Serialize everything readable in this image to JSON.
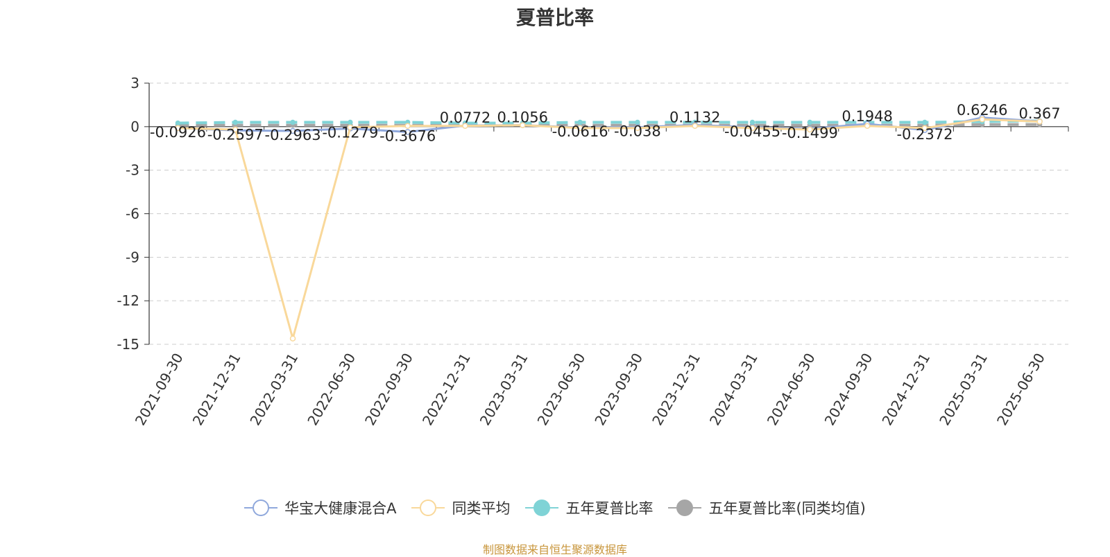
{
  "chart_data": {
    "type": "line",
    "title": "夏普比率",
    "categories": [
      "2021-09-30",
      "2021-12-31",
      "2022-03-31",
      "2022-06-30",
      "2022-09-30",
      "2022-12-31",
      "2023-03-31",
      "2023-06-30",
      "2023-09-30",
      "2023-12-31",
      "2024-03-31",
      "2024-06-30",
      "2024-09-30",
      "2024-12-31",
      "2025-03-31",
      "2025-06-30"
    ],
    "ylim": [
      -15,
      3
    ],
    "yticks": [
      3,
      0,
      -3,
      -6,
      -9,
      -12,
      -15
    ],
    "grid": true,
    "legend_position": "bottom",
    "series": [
      {
        "name": "华宝大健康混合A",
        "color": "#8fa8dc",
        "marker": "circle-hollow",
        "values": [
          -0.0926,
          -0.2597,
          -0.2963,
          -0.1279,
          -0.3676,
          0.0772,
          0.1056,
          -0.0616,
          -0.038,
          0.1132,
          -0.0455,
          -0.1499,
          0.1948,
          -0.2372,
          0.6246,
          0.367
        ],
        "data_labels": [
          "-0.0926",
          "-0.2597",
          "-0.2963",
          "-0.1279",
          "-0.3676",
          "0.0772",
          "0.1056",
          "-0.0616",
          "-0.038",
          "0.1132",
          "-0.0455",
          "-0.1499",
          "0.1948",
          "-0.2372",
          "0.6246",
          "0.367"
        ]
      },
      {
        "name": "同类平均",
        "color": "#f9d89a",
        "marker": "circle-hollow",
        "values": [
          -0.1,
          -0.2,
          -14.6,
          -0.05,
          0.05,
          0.05,
          0.1,
          -0.1,
          -0.1,
          0.05,
          -0.1,
          -0.2,
          0.05,
          -0.1,
          0.5,
          0.35
        ]
      },
      {
        "name": "五年夏普比率",
        "color": "#7fd3d6",
        "marker": "circle-filled",
        "values": [
          0.25,
          0.3,
          0.3,
          0.3,
          0.3,
          0.25,
          0.25,
          0.3,
          0.3,
          0.3,
          0.3,
          0.3,
          0.3,
          0.3,
          0.35,
          0.4
        ]
      },
      {
        "name": "五年夏普比率(同类均值)",
        "color": "#a6a6a6",
        "marker": "circle-filled",
        "values": [
          0.1,
          0.1,
          0.1,
          0.1,
          0.1,
          0.1,
          0.1,
          0.1,
          0.1,
          0.1,
          0.1,
          0.1,
          0.1,
          0.1,
          0.15,
          0.15
        ]
      }
    ]
  },
  "footer": {
    "source": "制图数据来自恒生聚源数据库"
  }
}
